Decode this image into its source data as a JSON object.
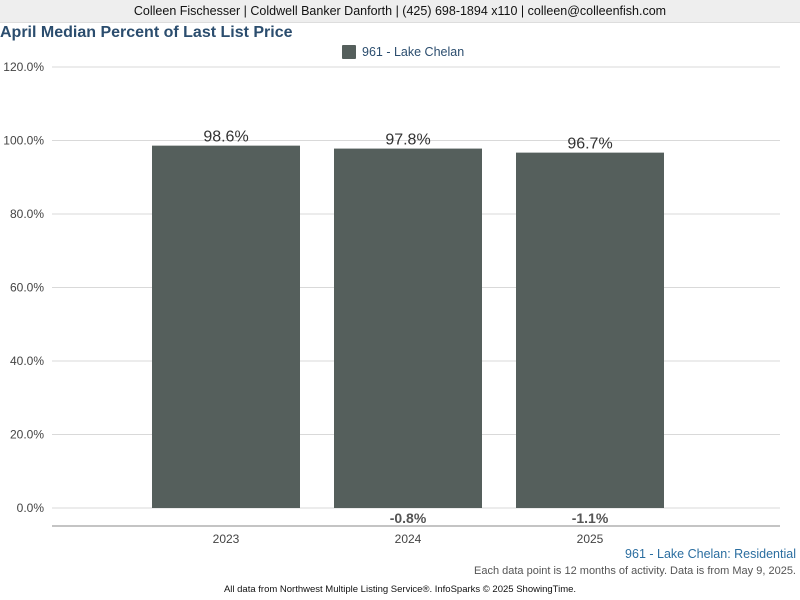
{
  "header": {
    "contact_line": "Colleen Fischesser | Coldwell Banker Danforth | (425) 698-1894 x110 | colleen@colleenfish.com"
  },
  "chart_data": {
    "type": "bar",
    "title": "April Median Percent of Last List Price",
    "categories": [
      "2023",
      "2024",
      "2025"
    ],
    "series": [
      {
        "name": "961 - Lake Chelan",
        "values": [
          98.6,
          97.8,
          96.7
        ],
        "value_labels": [
          "98.6%",
          "97.8%",
          "96.7%"
        ],
        "color": "#555f5c"
      }
    ],
    "change_labels": [
      "",
      "-0.8%",
      "-1.1%"
    ],
    "ylim": [
      0,
      120
    ],
    "yticks": [
      0,
      20,
      40,
      60,
      80,
      100,
      120
    ],
    "ytick_labels": [
      "0.0%",
      "20.0%",
      "40.0%",
      "60.0%",
      "80.0%",
      "100.0%",
      "120.0%"
    ],
    "grid": true,
    "legend_position": "top-center"
  },
  "footer": {
    "series_note": "961 - Lake Chelan: Residential",
    "activity_note": "Each data point is 12 months of activity. Data is from May 9, 2025.",
    "source_note": "All data from Northwest Multiple Listing Service®. InfoSparks © 2025 ShowingTime."
  }
}
